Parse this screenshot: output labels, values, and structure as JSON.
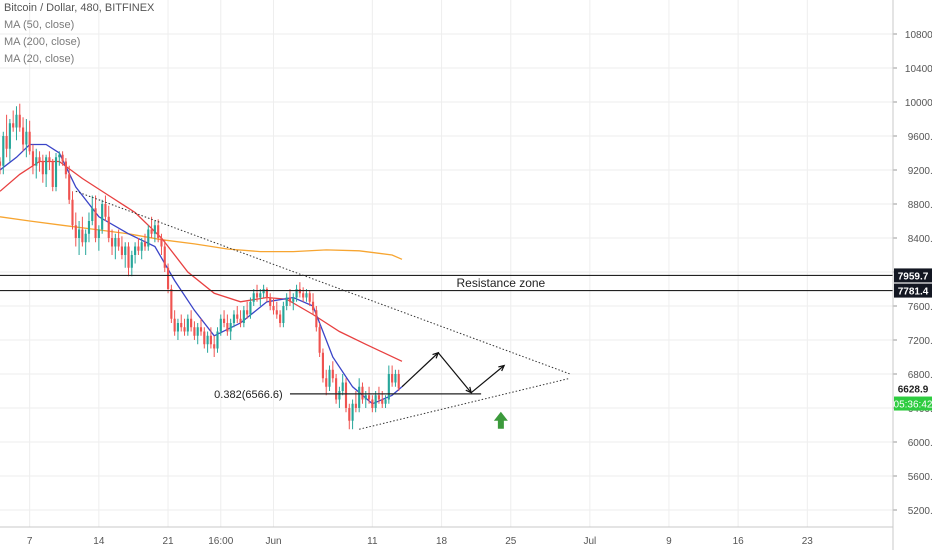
{
  "header": {
    "symbol_title": "Bitcoin / Dollar, 480, BITFINEX",
    "indicators": [
      "MA (50, close)",
      "MA (200, close)",
      "MA (20, close)"
    ]
  },
  "colors": {
    "up": "#26a69a",
    "down": "#ef5350",
    "ma50": "#e84040",
    "ma200": "#f7a531",
    "ma20": "#3a44c8",
    "grid": "#eeeeee",
    "axis_text": "#555555",
    "last_price_bg": "#26a69a",
    "level_bg": "#131722"
  },
  "chart_data": {
    "type": "candlestick",
    "title": "Bitcoin / Dollar, 480, BITFINEX",
    "ylim": [
      5000,
      11200
    ],
    "x_ticks": [
      {
        "label": "7",
        "x": 0
      },
      {
        "label": "14",
        "x": 21
      },
      {
        "label": "21",
        "x": 42
      },
      {
        "label": "16:00",
        "x": 58
      },
      {
        "label": "Jun",
        "x": 74
      },
      {
        "label": "11",
        "x": 104
      },
      {
        "label": "18",
        "x": 125
      },
      {
        "label": "25",
        "x": 146
      },
      {
        "label": "Jul",
        "x": 170
      },
      {
        "label": "9",
        "x": 194
      },
      {
        "label": "16",
        "x": 215
      },
      {
        "label": "23",
        "x": 236
      }
    ],
    "y_ticks": [
      5200,
      5600,
      6000,
      6400,
      6800,
      7200,
      7600,
      8000,
      8400,
      8800,
      9200,
      9600,
      10000,
      10400,
      10800
    ],
    "x_range": [
      -9,
      262
    ],
    "candles": [
      [
        -9,
        9300,
        9350,
        9150,
        9250
      ],
      [
        -8,
        9250,
        9650,
        9150,
        9600
      ],
      [
        -7,
        9600,
        9850,
        9350,
        9450
      ],
      [
        -6,
        9450,
        9800,
        9300,
        9750
      ],
      [
        -5,
        9750,
        9900,
        9650,
        9700
      ],
      [
        -4,
        9700,
        9950,
        9550,
        9850
      ],
      [
        -3,
        9850,
        9980,
        9650,
        9700
      ],
      [
        -2,
        9700,
        9820,
        9420,
        9500
      ],
      [
        -1,
        9500,
        9800,
        9350,
        9650
      ],
      [
        0,
        9650,
        9780,
        9380,
        9420
      ],
      [
        1,
        9420,
        9500,
        9150,
        9250
      ],
      [
        2,
        9250,
        9450,
        9100,
        9350
      ],
      [
        3,
        9350,
        9420,
        9180,
        9300
      ],
      [
        4,
        9300,
        9380,
        9050,
        9150
      ],
      [
        5,
        9150,
        9380,
        9000,
        9350
      ],
      [
        6,
        9350,
        9420,
        9200,
        9300
      ],
      [
        7,
        9300,
        9330,
        8950,
        9000
      ],
      [
        8,
        9000,
        9400,
        8950,
        9350
      ],
      [
        9,
        9350,
        9420,
        9250,
        9380
      ],
      [
        10,
        9380,
        9420,
        9250,
        9300
      ],
      [
        11,
        9300,
        9340,
        9100,
        9150
      ],
      [
        12,
        9150,
        9250,
        8800,
        8850
      ],
      [
        13,
        8850,
        8950,
        8500,
        8550
      ],
      [
        14,
        8550,
        8700,
        8300,
        8400
      ],
      [
        15,
        8400,
        8600,
        8200,
        8500
      ],
      [
        16,
        8500,
        8650,
        8300,
        8350
      ],
      [
        17,
        8350,
        8500,
        8200,
        8450
      ],
      [
        18,
        8450,
        8700,
        8350,
        8600
      ],
      [
        19,
        8600,
        8900,
        8550,
        8750
      ],
      [
        20,
        8750,
        8900,
        8350,
        8400
      ],
      [
        21,
        8400,
        8550,
        8250,
        8500
      ],
      [
        22,
        8500,
        8850,
        8450,
        8800
      ],
      [
        23,
        8800,
        8900,
        8600,
        8650
      ],
      [
        24,
        8650,
        8780,
        8350,
        8400
      ],
      [
        25,
        8400,
        8500,
        8200,
        8300
      ],
      [
        26,
        8300,
        8450,
        8150,
        8400
      ],
      [
        27,
        8400,
        8500,
        8250,
        8300
      ],
      [
        28,
        8300,
        8420,
        8150,
        8200
      ],
      [
        29,
        8200,
        8350,
        8050,
        8300
      ],
      [
        30,
        8300,
        8350,
        7950,
        8050
      ],
      [
        31,
        8050,
        8250,
        7950,
        8200
      ],
      [
        32,
        8200,
        8350,
        8100,
        8300
      ],
      [
        33,
        8300,
        8400,
        8200,
        8250
      ],
      [
        34,
        8250,
        8400,
        8150,
        8350
      ],
      [
        35,
        8350,
        8450,
        8250,
        8300
      ],
      [
        36,
        8300,
        8550,
        8250,
        8500
      ],
      [
        37,
        8500,
        8650,
        8400,
        8450
      ],
      [
        38,
        8450,
        8600,
        8350,
        8550
      ],
      [
        39,
        8550,
        8620,
        8350,
        8400
      ],
      [
        40,
        8400,
        8450,
        8200,
        8300
      ],
      [
        41,
        8300,
        8380,
        8000,
        8050
      ],
      [
        42,
        8050,
        8100,
        7750,
        7800
      ],
      [
        43,
        7800,
        7850,
        7400,
        7450
      ],
      [
        44,
        7450,
        7550,
        7250,
        7300
      ],
      [
        45,
        7300,
        7450,
        7200,
        7400
      ],
      [
        46,
        7400,
        7500,
        7300,
        7350
      ],
      [
        47,
        7350,
        7450,
        7250,
        7300
      ],
      [
        48,
        7300,
        7500,
        7250,
        7450
      ],
      [
        49,
        7450,
        7550,
        7300,
        7350
      ],
      [
        50,
        7350,
        7420,
        7200,
        7250
      ],
      [
        51,
        7250,
        7400,
        7150,
        7350
      ],
      [
        52,
        7350,
        7450,
        7250,
        7300
      ],
      [
        53,
        7300,
        7350,
        7100,
        7150
      ],
      [
        54,
        7150,
        7300,
        7050,
        7250
      ],
      [
        55,
        7250,
        7350,
        7100,
        7150
      ],
      [
        56,
        7150,
        7250,
        7000,
        7100
      ],
      [
        57,
        7100,
        7350,
        7050,
        7300
      ],
      [
        58,
        7300,
        7500,
        7250,
        7450
      ],
      [
        59,
        7450,
        7550,
        7350,
        7400
      ],
      [
        60,
        7400,
        7500,
        7250,
        7300
      ],
      [
        61,
        7300,
        7450,
        7200,
        7400
      ],
      [
        62,
        7400,
        7550,
        7350,
        7500
      ],
      [
        63,
        7500,
        7600,
        7400,
        7450
      ],
      [
        64,
        7450,
        7550,
        7350,
        7400
      ],
      [
        65,
        7400,
        7600,
        7350,
        7550
      ],
      [
        66,
        7550,
        7650,
        7450,
        7500
      ],
      [
        67,
        7500,
        7700,
        7450,
        7650
      ],
      [
        68,
        7650,
        7800,
        7600,
        7750
      ],
      [
        69,
        7750,
        7850,
        7650,
        7700
      ],
      [
        70,
        7700,
        7800,
        7600,
        7750
      ],
      [
        71,
        7750,
        7850,
        7700,
        7800
      ],
      [
        72,
        7800,
        7820,
        7650,
        7700
      ],
      [
        73,
        7700,
        7750,
        7550,
        7600
      ],
      [
        74,
        7600,
        7700,
        7500,
        7550
      ],
      [
        75,
        7550,
        7650,
        7450,
        7500
      ],
      [
        76,
        7500,
        7550,
        7350,
        7400
      ],
      [
        77,
        7400,
        7650,
        7350,
        7600
      ],
      [
        78,
        7600,
        7750,
        7550,
        7700
      ],
      [
        79,
        7700,
        7800,
        7600,
        7650
      ],
      [
        80,
        7650,
        7750,
        7550,
        7700
      ],
      [
        81,
        7700,
        7850,
        7650,
        7800
      ],
      [
        82,
        7800,
        7880,
        7700,
        7750
      ],
      [
        83,
        7750,
        7820,
        7650,
        7700
      ],
      [
        84,
        7700,
        7800,
        7650,
        7750
      ],
      [
        85,
        7750,
        7780,
        7600,
        7650
      ],
      [
        86,
        7650,
        7750,
        7500,
        7550
      ],
      [
        87,
        7550,
        7600,
        7300,
        7350
      ],
      [
        88,
        7350,
        7400,
        7000,
        7050
      ],
      [
        89,
        7050,
        7100,
        6700,
        6750
      ],
      [
        90,
        6750,
        6850,
        6550,
        6650
      ],
      [
        91,
        6650,
        6900,
        6600,
        6850
      ],
      [
        92,
        6850,
        6950,
        6700,
        6750
      ],
      [
        93,
        6750,
        6800,
        6450,
        6500
      ],
      [
        94,
        6500,
        6650,
        6400,
        6600
      ],
      [
        95,
        6600,
        6800,
        6550,
        6700
      ],
      [
        96,
        6700,
        6750,
        6350,
        6400
      ],
      [
        97,
        6400,
        6450,
        6150,
        6250
      ],
      [
        98,
        6250,
        6500,
        6150,
        6450
      ],
      [
        99,
        6450,
        6600,
        6350,
        6400
      ],
      [
        100,
        6400,
        6750,
        6350,
        6650
      ],
      [
        101,
        6650,
        6700,
        6450,
        6500
      ],
      [
        102,
        6500,
        6600,
        6400,
        6550
      ],
      [
        103,
        6550,
        6650,
        6450,
        6500
      ],
      [
        104,
        6500,
        6550,
        6350,
        6400
      ],
      [
        105,
        6400,
        6600,
        6350,
        6550
      ],
      [
        106,
        6550,
        6650,
        6450,
        6500
      ],
      [
        107,
        6500,
        6600,
        6400,
        6450
      ],
      [
        108,
        6450,
        6550,
        6400,
        6500
      ],
      [
        109,
        6500,
        6900,
        6450,
        6800
      ],
      [
        110,
        6800,
        6900,
        6650,
        6700
      ],
      [
        111,
        6700,
        6850,
        6650,
        6800
      ],
      [
        112,
        6800,
        6850,
        6600,
        6630
      ]
    ],
    "ma20": [
      [
        -9,
        9200
      ],
      [
        -4,
        9350
      ],
      [
        0,
        9500
      ],
      [
        5,
        9500
      ],
      [
        9,
        9400
      ],
      [
        14,
        9000
      ],
      [
        21,
        8650
      ],
      [
        30,
        8450
      ],
      [
        38,
        8300
      ],
      [
        44,
        7900
      ],
      [
        50,
        7550
      ],
      [
        56,
        7250
      ],
      [
        64,
        7400
      ],
      [
        72,
        7650
      ],
      [
        80,
        7700
      ],
      [
        86,
        7600
      ],
      [
        92,
        7000
      ],
      [
        98,
        6650
      ],
      [
        104,
        6450
      ],
      [
        110,
        6550
      ],
      [
        113,
        6650
      ]
    ],
    "ma50": [
      [
        -9,
        8950
      ],
      [
        -3,
        9150
      ],
      [
        3,
        9300
      ],
      [
        9,
        9300
      ],
      [
        16,
        9100
      ],
      [
        24,
        8900
      ],
      [
        32,
        8700
      ],
      [
        40,
        8400
      ],
      [
        48,
        8000
      ],
      [
        56,
        7750
      ],
      [
        64,
        7650
      ],
      [
        72,
        7700
      ],
      [
        78,
        7680
      ],
      [
        86,
        7500
      ],
      [
        94,
        7300
      ],
      [
        102,
        7150
      ],
      [
        113,
        6950
      ]
    ],
    "ma200": [
      [
        -9,
        8650
      ],
      [
        0,
        8600
      ],
      [
        10,
        8550
      ],
      [
        20,
        8500
      ],
      [
        30,
        8450
      ],
      [
        40,
        8380
      ],
      [
        50,
        8330
      ],
      [
        60,
        8270
      ],
      [
        70,
        8240
      ],
      [
        80,
        8240
      ],
      [
        90,
        8260
      ],
      [
        100,
        8250
      ],
      [
        110,
        8200
      ],
      [
        113,
        8150
      ]
    ],
    "trendlines": [
      {
        "from": [
          14,
          8950
        ],
        "to": [
          164,
          6800
        ],
        "style": "dotted"
      },
      {
        "from": [
          100,
          6150
        ],
        "to": [
          164,
          6750
        ],
        "style": "dotted"
      }
    ],
    "projection_path": [
      [
        113,
        6650
      ],
      [
        124,
        7050
      ],
      [
        134,
        6580
      ],
      [
        144,
        6900
      ]
    ],
    "horizontal_levels": [
      {
        "name": "resistance-top",
        "value": 7959.7
      },
      {
        "name": "resistance-bottom",
        "value": 7781.4
      },
      {
        "name": "fib",
        "value": 6566.6
      }
    ],
    "annotations": {
      "resistance_zone": "Resistance zone",
      "fib_label": "0.382(6566.6)"
    },
    "up_arrow": {
      "x": 143,
      "y": 6250
    },
    "price_labels": {
      "resistance_top": "7959.7",
      "resistance_bottom": "7781.4",
      "last_price": "6628.9",
      "countdown": "05:36:42"
    },
    "last_price": 6628.9
  }
}
